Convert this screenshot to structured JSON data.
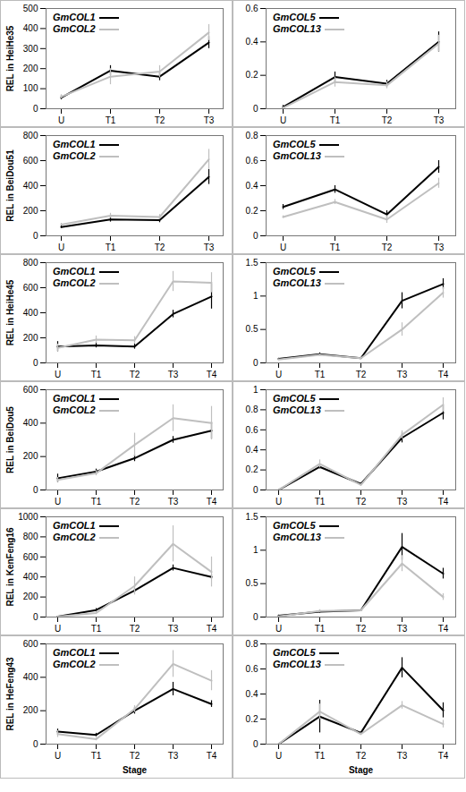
{
  "chart_data": [
    {
      "type": "line",
      "y_label": "REL in HeiHe35",
      "categories": [
        "U",
        "T1",
        "T2",
        "T3"
      ],
      "ylim": [
        0,
        500
      ],
      "yticks": [
        0,
        100,
        200,
        300,
        400,
        500
      ],
      "legend": "top-left",
      "series": [
        {
          "name": "GmCOL1",
          "color": "#000000",
          "values": [
            55,
            190,
            160,
            330
          ],
          "errors": [
            10,
            25,
            20,
            30
          ]
        },
        {
          "name": "GmCOL2",
          "color": "#bfbfbf",
          "values": [
            60,
            160,
            185,
            380
          ],
          "errors": [
            10,
            40,
            30,
            40
          ]
        }
      ]
    },
    {
      "type": "line",
      "categories": [
        "U",
        "T1",
        "T2",
        "T3"
      ],
      "ylim": [
        0,
        0.6
      ],
      "yticks": [
        0,
        0.2,
        0.4,
        0.6
      ],
      "legend": "top-left",
      "series": [
        {
          "name": "GmCOL5",
          "color": "#000000",
          "values": [
            0.01,
            0.19,
            0.15,
            0.4
          ],
          "errors": [
            0.01,
            0.03,
            0.02,
            0.06
          ]
        },
        {
          "name": "GmCOL13",
          "color": "#bfbfbf",
          "values": [
            0.005,
            0.16,
            0.14,
            0.39
          ],
          "errors": [
            0.005,
            0.03,
            0.02,
            0.05
          ]
        }
      ]
    },
    {
      "type": "line",
      "y_label": "REL in BeiDou51",
      "categories": [
        "U",
        "T1",
        "T2",
        "T3"
      ],
      "ylim": [
        0,
        800
      ],
      "yticks": [
        0,
        200,
        400,
        600,
        800
      ],
      "legend": "top-left",
      "series": [
        {
          "name": "GmCOL1",
          "color": "#000000",
          "values": [
            70,
            130,
            125,
            470
          ],
          "errors": [
            10,
            20,
            20,
            60
          ]
        },
        {
          "name": "GmCOL2",
          "color": "#bfbfbf",
          "values": [
            90,
            160,
            150,
            610
          ],
          "errors": [
            10,
            20,
            20,
            80
          ]
        }
      ]
    },
    {
      "type": "line",
      "categories": [
        "U",
        "T1",
        "T2",
        "T3"
      ],
      "ylim": [
        0,
        0.8
      ],
      "yticks": [
        0,
        0.2,
        0.4,
        0.6,
        0.8
      ],
      "legend": "top-left",
      "series": [
        {
          "name": "GmCOL5",
          "color": "#000000",
          "values": [
            0.23,
            0.37,
            0.17,
            0.55
          ],
          "errors": [
            0.02,
            0.03,
            0.03,
            0.05
          ]
        },
        {
          "name": "GmCOL13",
          "color": "#bfbfbf",
          "values": [
            0.15,
            0.27,
            0.13,
            0.42
          ],
          "errors": [
            0.01,
            0.02,
            0.03,
            0.04
          ]
        }
      ]
    },
    {
      "type": "line",
      "y_label": "REL in HeiHe45",
      "categories": [
        "U",
        "T1",
        "T2",
        "T3",
        "T4"
      ],
      "ylim": [
        0,
        800
      ],
      "yticks": [
        0,
        200,
        400,
        600,
        800
      ],
      "legend": "top-left",
      "series": [
        {
          "name": "GmCOL1",
          "color": "#000000",
          "values": [
            130,
            140,
            130,
            390,
            530
          ],
          "errors": [
            40,
            20,
            20,
            30,
            100
          ]
        },
        {
          "name": "GmCOL2",
          "color": "#bfbfbf",
          "values": [
            120,
            185,
            180,
            650,
            640
          ],
          "errors": [
            30,
            30,
            30,
            80,
            80
          ]
        }
      ]
    },
    {
      "type": "line",
      "categories": [
        "U",
        "T1",
        "T2",
        "T3",
        "T4"
      ],
      "ylim": [
        0,
        1.5
      ],
      "yticks": [
        0,
        0.5,
        1,
        1.5
      ],
      "legend": "top-left",
      "series": [
        {
          "name": "GmCOL5",
          "color": "#000000",
          "values": [
            0.06,
            0.13,
            0.07,
            0.93,
            1.18
          ],
          "errors": [
            0.01,
            0.02,
            0.01,
            0.12,
            0.08
          ]
        },
        {
          "name": "GmCOL13",
          "color": "#bfbfbf",
          "values": [
            0.05,
            0.12,
            0.07,
            0.5,
            1.05
          ],
          "errors": [
            0.01,
            0.01,
            0.01,
            0.1,
            0.08
          ]
        }
      ]
    },
    {
      "type": "line",
      "y_label": "REL in BeiDou5",
      "categories": [
        "U",
        "T1",
        "T2",
        "T3",
        "T4"
      ],
      "ylim": [
        0,
        600
      ],
      "yticks": [
        0,
        200,
        400,
        600
      ],
      "legend": "top-left",
      "series": [
        {
          "name": "GmCOL1",
          "color": "#000000",
          "values": [
            70,
            110,
            190,
            300,
            355
          ],
          "errors": [
            25,
            15,
            20,
            20,
            50
          ]
        },
        {
          "name": "GmCOL2",
          "color": "#bfbfbf",
          "values": [
            60,
            100,
            270,
            430,
            400
          ],
          "errors": [
            15,
            15,
            70,
            80,
            100
          ]
        }
      ]
    },
    {
      "type": "line",
      "categories": [
        "U",
        "T1",
        "T2",
        "T3",
        "T4"
      ],
      "ylim": [
        0,
        1
      ],
      "yticks": [
        0,
        0.2,
        0.4,
        0.6,
        0.8,
        1
      ],
      "legend": "top-left",
      "series": [
        {
          "name": "GmCOL5",
          "color": "#000000",
          "values": [
            0,
            0.23,
            0.06,
            0.52,
            0.77
          ],
          "errors": [
            0,
            0.02,
            0.01,
            0.05,
            0.07
          ]
        },
        {
          "name": "GmCOL13",
          "color": "#bfbfbf",
          "values": [
            0,
            0.26,
            0.05,
            0.55,
            0.85
          ],
          "errors": [
            0,
            0.04,
            0.01,
            0.04,
            0.07
          ]
        }
      ]
    },
    {
      "type": "line",
      "y_label": "REL in KenFeng16",
      "categories": [
        "U",
        "T1",
        "T2",
        "T3",
        "T4"
      ],
      "ylim": [
        0,
        1000
      ],
      "yticks": [
        0,
        200,
        400,
        600,
        800,
        1000
      ],
      "legend": "top-left",
      "series": [
        {
          "name": "GmCOL1",
          "color": "#000000",
          "values": [
            5,
            70,
            265,
            490,
            400
          ],
          "errors": [
            2,
            15,
            20,
            30,
            20
          ]
        },
        {
          "name": "GmCOL2",
          "color": "#bfbfbf",
          "values": [
            5,
            40,
            310,
            730,
            450
          ],
          "errors": [
            2,
            15,
            90,
            180,
            150
          ]
        }
      ]
    },
    {
      "type": "line",
      "categories": [
        "U",
        "T1",
        "T2",
        "T3",
        "T4"
      ],
      "ylim": [
        0,
        1.5
      ],
      "yticks": [
        0,
        0.5,
        1,
        1.5
      ],
      "legend": "top-left",
      "series": [
        {
          "name": "GmCOL5",
          "color": "#000000",
          "values": [
            0.02,
            0.08,
            0.1,
            1.05,
            0.65
          ],
          "errors": [
            0.01,
            0.02,
            0.01,
            0.2,
            0.08
          ]
        },
        {
          "name": "GmCOL13",
          "color": "#bfbfbf",
          "values": [
            0.01,
            0.09,
            0.1,
            0.8,
            0.3
          ],
          "errors": [
            0.005,
            0.02,
            0.01,
            0.12,
            0.05
          ]
        }
      ]
    },
    {
      "type": "line",
      "y_label": "REL in HeFeng43",
      "x_label": "Stage",
      "categories": [
        "U",
        "T1",
        "T2",
        "T3",
        "T4"
      ],
      "ylim": [
        0,
        600
      ],
      "yticks": [
        0,
        200,
        400,
        600
      ],
      "legend": "top-left",
      "series": [
        {
          "name": "GmCOL1",
          "color": "#000000",
          "values": [
            75,
            55,
            200,
            330,
            240
          ],
          "errors": [
            15,
            10,
            20,
            40,
            20
          ]
        },
        {
          "name": "GmCOL2",
          "color": "#bfbfbf",
          "values": [
            60,
            30,
            210,
            480,
            380
          ],
          "errors": [
            20,
            10,
            20,
            80,
            60
          ]
        }
      ]
    },
    {
      "type": "line",
      "x_label": "Stage",
      "categories": [
        "U",
        "T1",
        "T2",
        "T3",
        "T4"
      ],
      "ylim": [
        0,
        0.8
      ],
      "yticks": [
        0,
        0.2,
        0.4,
        0.6,
        0.8
      ],
      "legend": "top-left",
      "series": [
        {
          "name": "GmCOL5",
          "color": "#000000",
          "values": [
            0,
            0.22,
            0.09,
            0.61,
            0.27
          ],
          "errors": [
            0,
            0.13,
            0.01,
            0.08,
            0.06
          ]
        },
        {
          "name": "GmCOL13",
          "color": "#bfbfbf",
          "values": [
            0,
            0.26,
            0.08,
            0.31,
            0.16
          ],
          "errors": [
            0,
            0.06,
            0.01,
            0.03,
            0.03
          ]
        }
      ]
    }
  ]
}
